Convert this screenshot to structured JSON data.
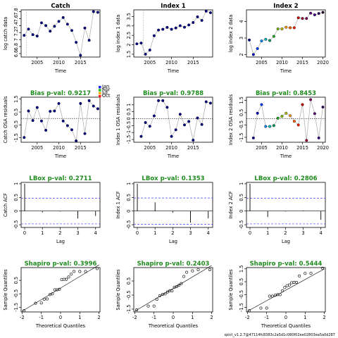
{
  "chart_data": {
    "type": "diagnostic-panel-grid",
    "footer": "spict_v1.2.7@47114fc8383c2a5d1c080f02ee02803ea5a0d287",
    "rows": [
      [
        {
          "type": "line",
          "title": "Catch",
          "title_color": "black",
          "xlabel": "Time",
          "ylabel": "log catch data",
          "xlim": [
            2001.3,
            2019.5
          ],
          "ylim": [
            6.5,
            7.85
          ],
          "xticks": [
            2005,
            2010,
            2015
          ],
          "yticks": [
            6.6,
            6.8,
            7.0,
            7.2,
            7.4,
            7.6,
            7.8
          ],
          "vline": 2002.5,
          "points_style": "navy",
          "x": [
            2002,
            2003,
            2004,
            2005,
            2006,
            2007,
            2008,
            2009,
            2010,
            2011,
            2012,
            2013,
            2014,
            2015,
            2016,
            2017,
            2018,
            2019
          ],
          "y": [
            7.12,
            7.3,
            7.14,
            7.1,
            7.48,
            7.4,
            7.24,
            7.38,
            7.52,
            7.63,
            7.44,
            7.26,
            6.92,
            6.55,
            7.33,
            6.98,
            7.8,
            7.78
          ]
        },
        {
          "type": "line",
          "title": "Index 1",
          "title_color": "black",
          "xlabel": "Time",
          "ylabel": "log index 1 data",
          "xlim": [
            2001.3,
            2019.5
          ],
          "ylim": [
            1.35,
            3.85
          ],
          "xticks": [
            2005,
            2010,
            2015
          ],
          "yticks": [
            1.5,
            2.0,
            2.5,
            3.0,
            3.5
          ],
          "vline": 2003.5,
          "points_style": "navy",
          "x": [
            2002,
            2003,
            2004,
            2005,
            2006,
            2007,
            2008,
            2009,
            2010,
            2011,
            2012,
            2013,
            2014,
            2015,
            2016,
            2017,
            2018,
            2019
          ],
          "y": [
            2.05,
            2.09,
            1.5,
            1.72,
            2.48,
            2.78,
            2.82,
            2.92,
            2.82,
            2.89,
            3.01,
            2.93,
            3.05,
            3.18,
            3.48,
            3.29,
            3.78,
            3.7
          ]
        },
        {
          "type": "line",
          "title": "Index 2",
          "title_color": "black",
          "xlabel": "Time",
          "ylabel": "log index 2 data",
          "xlim": [
            2001.3,
            2020.6
          ],
          "ylim": [
            1.85,
            4.7
          ],
          "xticks": [
            2005,
            2010,
            2015,
            2020
          ],
          "yticks": [
            2.0,
            3.0,
            4.0
          ],
          "vline": null,
          "points_style": "rainbow",
          "x": [
            2002,
            2003,
            2004,
            2005,
            2006,
            2007,
            2008,
            2009,
            2010,
            2011,
            2012,
            2013,
            2014,
            2015,
            2016,
            2017,
            2018,
            2019,
            2020
          ],
          "y": [
            2.88,
            2.0,
            2.36,
            2.82,
            2.92,
            2.85,
            3.1,
            3.55,
            3.55,
            3.65,
            3.62,
            3.62,
            4.22,
            4.18,
            4.18,
            4.5,
            4.4,
            4.48,
            4.55
          ]
        }
      ],
      [
        {
          "type": "line",
          "title": "Bias p-val: 0.9217",
          "title_color": "green",
          "xlabel": "Time",
          "ylabel": "Catch OSA residuals",
          "xlim": [
            2001.3,
            2019.5
          ],
          "ylim": [
            -1.85,
            1.65
          ],
          "xticks": [
            2005,
            2010,
            2015
          ],
          "yticks": [
            -1.5,
            -0.5,
            0.5,
            1.5
          ],
          "zero_line": true,
          "points_style": "navy",
          "legend": [
            "Jan",
            "Apr",
            "Jul",
            "Oct"
          ],
          "legend_colors": [
            "#2020ff",
            "#20c020",
            "#ffa500",
            "#ff2020"
          ],
          "x": [
            2002,
            2003,
            2004,
            2005,
            2006,
            2007,
            2008,
            2009,
            2010,
            2011,
            2012,
            2013,
            2014,
            2015,
            2016,
            2017,
            2018,
            2019
          ],
          "y": [
            -1.48,
            0.58,
            -0.16,
            0.85,
            -0.2,
            -0.92,
            0.55,
            0.58,
            1.16,
            -0.2,
            -0.56,
            -0.88,
            -1.74,
            1.16,
            -1.18,
            1.38,
            0.96,
            0.75
          ]
        },
        {
          "type": "line",
          "title": "Bias p-val: 0.9788",
          "title_color": "green",
          "xlabel": "Time",
          "ylabel": "Index 1 OSA residuals",
          "xlim": [
            2001.3,
            2019.5
          ],
          "ylim": [
            -1.7,
            1.55
          ],
          "xticks": [
            2005,
            2010,
            2015
          ],
          "yticks": [
            -1.5,
            -1.0,
            -0.5,
            0.0,
            0.5,
            1.0
          ],
          "zero_line": true,
          "points_style": "navy",
          "x": [
            2003,
            2004,
            2005,
            2006,
            2007,
            2008,
            2009,
            2010,
            2011,
            2012,
            2013,
            2014,
            2015,
            2016,
            2017,
            2018,
            2019
          ],
          "y": [
            -1.28,
            -0.28,
            -0.55,
            0.2,
            1.3,
            1.3,
            0.82,
            -1.28,
            -0.8,
            0.32,
            -0.45,
            -0.2,
            -1.55,
            0.05,
            -0.42,
            1.22,
            1.12
          ]
        },
        {
          "type": "line",
          "title": "Bias p-val: 0.8453",
          "title_color": "green",
          "xlabel": "Time",
          "ylabel": "Index 2 OSA residuals",
          "xlim": [
            2001.3,
            2020.6
          ],
          "ylim": [
            -1.9,
            1.75
          ],
          "xticks": [
            2005,
            2010,
            2015,
            2020
          ],
          "yticks": [
            -1.5,
            -0.5,
            0.5,
            1.5
          ],
          "zero_line": true,
          "points_style": "rainbow",
          "x": [
            2003,
            2004,
            2005,
            2006,
            2007,
            2008,
            2009,
            2010,
            2011,
            2012,
            2013,
            2014,
            2015,
            2016,
            2017,
            2018,
            2019,
            2020
          ],
          "y": [
            -1.55,
            0.45,
            1.15,
            -0.62,
            -0.62,
            -0.55,
            0.05,
            0.2,
            0.45,
            0.25,
            -0.2,
            -0.5,
            1.15,
            -1.75,
            1.55,
            0.42,
            -1.55,
            0.95
          ]
        }
      ],
      [
        {
          "type": "bar",
          "title": "LBox p-val: 0.2711",
          "title_color": "green",
          "xlabel": "Lag",
          "ylabel": "Catch ACF",
          "xlim": [
            -0.2,
            4.25
          ],
          "ylim": [
            -0.6,
            1.05
          ],
          "xticks": [
            0,
            1,
            2,
            3,
            4
          ],
          "yticks": [
            -0.5,
            0.0,
            0.5,
            1.0
          ],
          "ci": 0.47,
          "lags": [
            0,
            1,
            2,
            3,
            4
          ],
          "acf": [
            1.0,
            -0.05,
            -0.02,
            -0.27,
            -0.18
          ]
        },
        {
          "type": "bar",
          "title": "LBox p-val: 0.1353",
          "title_color": "green",
          "xlabel": "Lag",
          "ylabel": "Index 1 ACF",
          "xlim": [
            -0.2,
            4.25
          ],
          "ylim": [
            -0.6,
            1.05
          ],
          "xticks": [
            0,
            1,
            2,
            3,
            4
          ],
          "yticks": [
            -0.5,
            0.0,
            0.5,
            1.0
          ],
          "ci": 0.48,
          "lags": [
            0,
            1,
            2,
            3,
            4
          ],
          "acf": [
            1.0,
            0.32,
            -0.06,
            -0.42,
            -0.27
          ]
        },
        {
          "type": "bar",
          "title": "LBox p-val: 0.2806",
          "title_color": "green",
          "xlabel": "Lag",
          "ylabel": "Index 2 ACF",
          "xlim": [
            -0.2,
            4.25
          ],
          "ylim": [
            -0.6,
            1.05
          ],
          "xticks": [
            0,
            1,
            2,
            3,
            4
          ],
          "yticks": [
            -0.5,
            0.0,
            0.5,
            1.0
          ],
          "ci": 0.47,
          "lags": [
            0,
            1,
            2,
            3,
            4
          ],
          "acf": [
            1.0,
            -0.22,
            -0.02,
            0.02,
            -0.32
          ]
        }
      ],
      [
        {
          "type": "scatter",
          "title": "Shapiro p-val: 0.3996",
          "title_color": "green",
          "xlabel": "Theoretical Quantiles",
          "ylabel": "Sample Quantiles",
          "xlim": [
            -2.05,
            2.05
          ],
          "ylim": [
            -1.85,
            1.45
          ],
          "xticks": [
            -2,
            -1,
            0,
            1,
            2
          ],
          "yticks": [
            -1.5,
            -0.5,
            0.5
          ],
          "ref_line": [
            [
              -2.0,
              -1.8
            ],
            [
              2.0,
              1.65
            ]
          ],
          "x": [
            -1.9,
            -1.3,
            -1.0,
            -0.85,
            -0.7,
            -0.55,
            -0.42,
            -0.3,
            -0.18,
            -0.06,
            0.06,
            0.18,
            0.3,
            0.42,
            0.55,
            0.7,
            1.0,
            1.3,
            1.9
          ],
          "y": [
            -1.75,
            -1.2,
            -1.18,
            -0.9,
            -0.88,
            -0.56,
            -0.5,
            -0.2,
            -0.2,
            -0.16,
            0.55,
            0.58,
            0.58,
            0.75,
            0.96,
            1.16,
            1.16,
            1.16,
            1.38
          ]
        },
        {
          "type": "scatter",
          "title": "Shapiro p-val: 0.2403",
          "title_color": "green",
          "xlabel": "Theoretical Quantiles",
          "ylabel": "Sample Quantiles",
          "xlim": [
            -2.05,
            2.05
          ],
          "ylim": [
            -1.7,
            1.45
          ],
          "xticks": [
            -2,
            -1,
            0,
            1,
            2
          ],
          "yticks": [
            -1.5,
            -0.5,
            0.5
          ],
          "ref_line": [
            [
              -2.0,
              -1.65
            ],
            [
              2.0,
              1.6
            ]
          ],
          "x": [
            -1.9,
            -1.3,
            -1.0,
            -0.85,
            -0.7,
            -0.55,
            -0.42,
            -0.3,
            -0.18,
            -0.06,
            0.06,
            0.18,
            0.3,
            0.42,
            0.55,
            0.7,
            1.0,
            1.3,
            1.9
          ],
          "y": [
            -1.55,
            -1.28,
            -1.28,
            -0.8,
            -0.55,
            -0.45,
            -0.42,
            -0.28,
            -0.2,
            -0.2,
            0.05,
            0.1,
            0.2,
            0.32,
            0.82,
            1.12,
            1.22,
            1.3,
            1.3
          ]
        },
        {
          "type": "scatter",
          "title": "Shapiro p-val: 0.5444",
          "title_color": "green",
          "xlabel": "Theoretical Quantiles",
          "ylabel": "Sample Quantiles",
          "xlim": [
            -2.05,
            2.05
          ],
          "ylim": [
            -1.85,
            1.6
          ],
          "xticks": [
            -2,
            -1,
            0,
            1,
            2
          ],
          "yticks": [
            -1.5,
            -0.5,
            0.5,
            1.5
          ],
          "ref_line": [
            [
              -2.0,
              -1.8
            ],
            [
              2.0,
              1.5
            ]
          ],
          "x": [
            -1.9,
            -1.3,
            -1.0,
            -0.85,
            -0.7,
            -0.55,
            -0.42,
            -0.3,
            -0.18,
            -0.06,
            0.06,
            0.18,
            0.3,
            0.42,
            0.55,
            0.7,
            1.0,
            1.3,
            1.9
          ],
          "y": [
            -1.75,
            -1.55,
            -1.55,
            -0.62,
            -0.62,
            -0.55,
            -0.5,
            -0.5,
            -0.2,
            0.05,
            0.2,
            0.25,
            0.42,
            0.45,
            0.45,
            0.95,
            1.15,
            1.15,
            1.55
          ]
        }
      ]
    ]
  }
}
